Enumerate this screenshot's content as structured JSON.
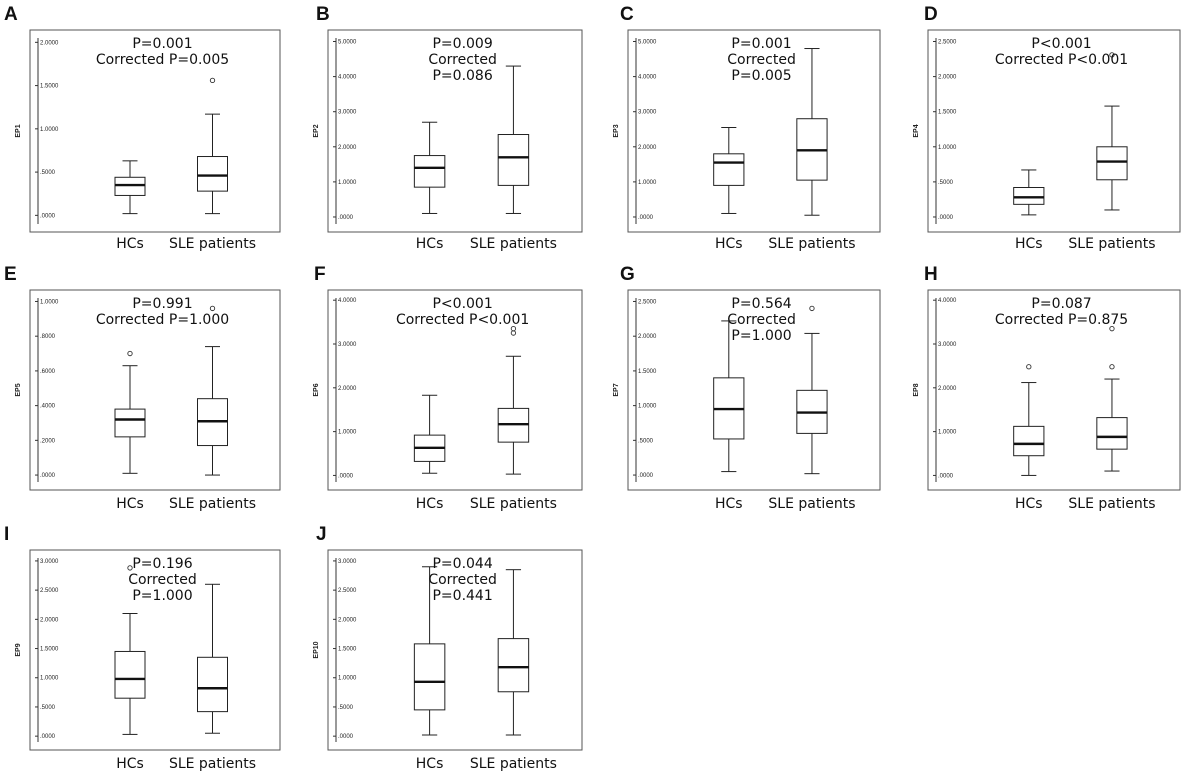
{
  "figure": {
    "background": "#ffffff",
    "box_color": "#222222",
    "frame_color": "#555555"
  },
  "chart_data": [
    {
      "id": "A",
      "type": "box",
      "panel_letter": "A",
      "ylabel": "EP1",
      "ylim": [
        -0.1,
        2.05
      ],
      "yticks": [
        0,
        0.5,
        1.0,
        1.5,
        2.0
      ],
      "ytick_labels": [
        ".0000",
        ".5000",
        "1.0000",
        "1.5000",
        "2.0000"
      ],
      "annotation": [
        "P=0.001",
        "Corrected P=0.005"
      ],
      "categories": [
        "HCs",
        "SLE patients"
      ],
      "boxes": [
        {
          "min": 0.02,
          "q1": 0.23,
          "median": 0.35,
          "q3": 0.44,
          "max": 0.63,
          "outliers": []
        },
        {
          "min": 0.02,
          "q1": 0.28,
          "median": 0.46,
          "q3": 0.68,
          "max": 1.17,
          "outliers": [
            1.56
          ]
        }
      ]
    },
    {
      "id": "B",
      "type": "box",
      "panel_letter": "B",
      "ylabel": "EP2",
      "ylim": [
        -0.2,
        5.1
      ],
      "yticks": [
        0,
        1,
        2,
        3,
        4,
        5
      ],
      "ytick_labels": [
        ".0000",
        "1.0000",
        "2.0000",
        "3.0000",
        "4.0000",
        "5.0000"
      ],
      "annotation": [
        "P=0.009",
        "Corrected",
        "P=0.086"
      ],
      "categories": [
        "HCs",
        "SLE patients"
      ],
      "boxes": [
        {
          "min": 0.1,
          "q1": 0.85,
          "median": 1.4,
          "q3": 1.75,
          "max": 2.7,
          "outliers": []
        },
        {
          "min": 0.1,
          "q1": 0.9,
          "median": 1.7,
          "q3": 2.35,
          "max": 4.3,
          "outliers": []
        }
      ]
    },
    {
      "id": "C",
      "type": "box",
      "panel_letter": "C",
      "ylabel": "EP3",
      "ylim": [
        -0.2,
        5.1
      ],
      "yticks": [
        0,
        1,
        2,
        3,
        4,
        5
      ],
      "ytick_labels": [
        ".0000",
        "1.0000",
        "2.0000",
        "3.0000",
        "4.0000",
        "5.0000"
      ],
      "annotation": [
        "P=0.001",
        "Corrected",
        "P=0.005"
      ],
      "categories": [
        "HCs",
        "SLE patients"
      ],
      "boxes": [
        {
          "min": 0.1,
          "q1": 0.9,
          "median": 1.55,
          "q3": 1.8,
          "max": 2.55,
          "outliers": []
        },
        {
          "min": 0.05,
          "q1": 1.05,
          "median": 1.9,
          "q3": 2.8,
          "max": 4.8,
          "outliers": []
        }
      ]
    },
    {
      "id": "D",
      "type": "box",
      "panel_letter": "D",
      "ylabel": "EP4",
      "ylim": [
        -0.1,
        2.55
      ],
      "yticks": [
        0,
        0.5,
        1.0,
        1.5,
        2.0,
        2.5
      ],
      "ytick_labels": [
        ".0000",
        ".5000",
        "1.0000",
        "1.5000",
        "2.0000",
        "2.5000"
      ],
      "annotation": [
        "P<0.001",
        "Corrected P<0.001"
      ],
      "categories": [
        "HCs",
        "SLE patients"
      ],
      "boxes": [
        {
          "min": 0.03,
          "q1": 0.18,
          "median": 0.28,
          "q3": 0.42,
          "max": 0.67,
          "outliers": []
        },
        {
          "min": 0.1,
          "q1": 0.53,
          "median": 0.79,
          "q3": 1.0,
          "max": 1.58,
          "outliers": [
            2.31
          ]
        }
      ]
    },
    {
      "id": "E",
      "type": "box",
      "panel_letter": "E",
      "ylabel": "EP5",
      "ylim": [
        -0.04,
        1.02
      ],
      "yticks": [
        0,
        0.2,
        0.4,
        0.6,
        0.8,
        1.0
      ],
      "ytick_labels": [
        ".0000",
        ".2000",
        ".4000",
        ".6000",
        ".8000",
        "1.0000"
      ],
      "annotation": [
        "P=0.991",
        "Corrected P=1.000"
      ],
      "categories": [
        "HCs",
        "SLE patients"
      ],
      "boxes": [
        {
          "min": 0.01,
          "q1": 0.22,
          "median": 0.32,
          "q3": 0.38,
          "max": 0.63,
          "outliers": [
            0.7
          ]
        },
        {
          "min": 0.0,
          "q1": 0.17,
          "median": 0.31,
          "q3": 0.44,
          "max": 0.74,
          "outliers": [
            0.96
          ]
        }
      ]
    },
    {
      "id": "F",
      "type": "box",
      "panel_letter": "F",
      "ylabel": "EP6",
      "ylim": [
        -0.15,
        4.05
      ],
      "yticks": [
        0,
        1,
        2,
        3,
        4
      ],
      "ytick_labels": [
        ".0000",
        "1.0000",
        "2.0000",
        "3.0000",
        "4.0000"
      ],
      "annotation": [
        "P<0.001",
        "Corrected P<0.001"
      ],
      "categories": [
        "HCs",
        "SLE patients"
      ],
      "boxes": [
        {
          "min": 0.05,
          "q1": 0.32,
          "median": 0.63,
          "q3": 0.92,
          "max": 1.83,
          "outliers": []
        },
        {
          "min": 0.03,
          "q1": 0.76,
          "median": 1.17,
          "q3": 1.53,
          "max": 2.72,
          "outliers": [
            3.25,
            3.35
          ]
        }
      ]
    },
    {
      "id": "G",
      "type": "box",
      "panel_letter": "G",
      "ylabel": "EP7",
      "ylim": [
        -0.1,
        2.55
      ],
      "yticks": [
        0,
        0.5,
        1.0,
        1.5,
        2.0,
        2.5
      ],
      "ytick_labels": [
        ".0000",
        ".5000",
        "1.0000",
        "1.5000",
        "2.0000",
        "2.5000"
      ],
      "annotation": [
        "P=0.564",
        "Corrected",
        "P=1.000"
      ],
      "categories": [
        "HCs",
        "SLE patients"
      ],
      "boxes": [
        {
          "min": 0.05,
          "q1": 0.52,
          "median": 0.95,
          "q3": 1.4,
          "max": 2.22,
          "outliers": []
        },
        {
          "min": 0.02,
          "q1": 0.6,
          "median": 0.9,
          "q3": 1.22,
          "max": 2.04,
          "outliers": [
            2.4
          ]
        }
      ]
    },
    {
      "id": "H",
      "type": "box",
      "panel_letter": "H",
      "ylabel": "EP8",
      "ylim": [
        -0.15,
        4.05
      ],
      "yticks": [
        0,
        1,
        2,
        3,
        4
      ],
      "ytick_labels": [
        ".0000",
        "1.0000",
        "2.0000",
        "3.0000",
        "4.0000"
      ],
      "annotation": [
        "P=0.087",
        "Corrected P=0.875"
      ],
      "categories": [
        "HCs",
        "SLE patients"
      ],
      "boxes": [
        {
          "min": 0.0,
          "q1": 0.45,
          "median": 0.72,
          "q3": 1.12,
          "max": 2.12,
          "outliers": [
            2.48
          ]
        },
        {
          "min": 0.1,
          "q1": 0.6,
          "median": 0.88,
          "q3": 1.32,
          "max": 2.2,
          "outliers": [
            2.48,
            3.35
          ]
        }
      ]
    },
    {
      "id": "I",
      "type": "box",
      "panel_letter": "I",
      "ylabel": "EP9",
      "ylim": [
        -0.1,
        3.05
      ],
      "yticks": [
        0,
        0.5,
        1.0,
        1.5,
        2.0,
        2.5,
        3.0
      ],
      "ytick_labels": [
        ".0000",
        ".5000",
        "1.0000",
        "1.5000",
        "2.0000",
        "2.5000",
        "3.0000"
      ],
      "annotation": [
        "P=0.196",
        "Corrected",
        "P=1.000"
      ],
      "categories": [
        "HCs",
        "SLE patients"
      ],
      "boxes": [
        {
          "min": 0.03,
          "q1": 0.65,
          "median": 0.98,
          "q3": 1.45,
          "max": 2.1,
          "outliers": [
            2.88
          ]
        },
        {
          "min": 0.05,
          "q1": 0.42,
          "median": 0.82,
          "q3": 1.35,
          "max": 2.6,
          "outliers": []
        }
      ]
    },
    {
      "id": "J",
      "type": "box",
      "panel_letter": "J",
      "ylabel": "EP10",
      "ylim": [
        -0.1,
        3.05
      ],
      "yticks": [
        0,
        0.5,
        1.0,
        1.5,
        2.0,
        2.5,
        3.0
      ],
      "ytick_labels": [
        ".0000",
        ".5000",
        "1.0000",
        "1.5000",
        "2.0000",
        "2.5000",
        "3.0000"
      ],
      "annotation": [
        "P=0.044",
        "Corrected",
        "P=0.441"
      ],
      "categories": [
        "HCs",
        "SLE patients"
      ],
      "boxes": [
        {
          "min": 0.02,
          "q1": 0.45,
          "median": 0.93,
          "q3": 1.58,
          "max": 2.9,
          "outliers": []
        },
        {
          "min": 0.02,
          "q1": 0.76,
          "median": 1.18,
          "q3": 1.67,
          "max": 2.85,
          "outliers": []
        }
      ]
    }
  ]
}
